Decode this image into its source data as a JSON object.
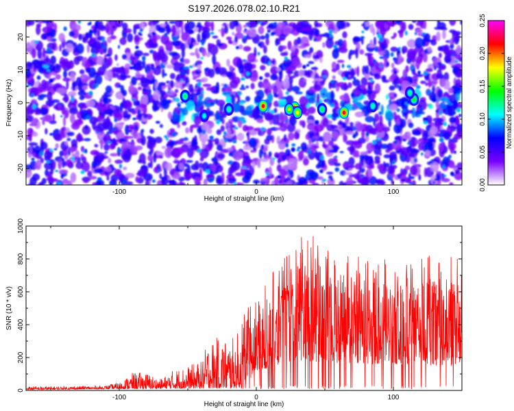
{
  "chart_data": [
    {
      "type": "heatmap",
      "title": "S197.2026.078.02.10.R21",
      "xlabel": "Height of straight line (km)",
      "ylabel": "Frequency (Hz)",
      "xlim": [
        -168,
        150
      ],
      "ylim": [
        -25,
        25
      ],
      "x_ticks": [
        -100,
        0,
        100
      ],
      "y_ticks": [
        -20,
        -10,
        0,
        10,
        20
      ],
      "x_tick_labels": [
        "-100",
        "0",
        "100"
      ],
      "y_tick_labels": [
        "-20",
        "-10",
        "0",
        "10",
        "20"
      ],
      "colorbar": {
        "label": "Normalized spectral amplitude",
        "range": [
          0,
          0.25
        ],
        "ticks": [
          "0.00",
          "0.05",
          "0.10",
          "0.15",
          "0.20",
          "0.25"
        ],
        "colormap": [
          "#ffffff",
          "#7a00ff",
          "#0000ff",
          "#00ffff",
          "#00ff00",
          "#ffff00",
          "#ff0000",
          "#ff00ff"
        ]
      },
      "grid": false,
      "notable_peaks": [
        {
          "x": 5,
          "y": -1,
          "value": 0.22
        },
        {
          "x": 28,
          "y": -1.5,
          "value": 0.21
        },
        {
          "x": 24,
          "y": -2,
          "value": 0.17
        },
        {
          "x": 30,
          "y": -3,
          "value": 0.18
        },
        {
          "x": 64,
          "y": -3,
          "value": 0.22
        },
        {
          "x": -52,
          "y": 2,
          "value": 0.13
        },
        {
          "x": -38,
          "y": -4,
          "value": 0.11
        },
        {
          "x": -20,
          "y": -2,
          "value": 0.12
        },
        {
          "x": 48,
          "y": -2,
          "value": 0.13
        },
        {
          "x": 85,
          "y": -1,
          "value": 0.12
        },
        {
          "x": 115,
          "y": 1,
          "value": 0.14
        },
        {
          "x": 112,
          "y": 3,
          "value": 0.12
        }
      ]
    },
    {
      "type": "line",
      "xlabel": "Height of straight line (km)",
      "ylabel": "SNR (10 * v/v)",
      "xlim": [
        -168,
        150
      ],
      "ylim": [
        0,
        1000
      ],
      "x_ticks": [
        -100,
        0,
        100
      ],
      "y_ticks": [
        0,
        200,
        400,
        600,
        800,
        1000
      ],
      "x_tick_labels": [
        "-100",
        "0",
        "100"
      ],
      "y_tick_labels": [
        "0",
        "200",
        "400",
        "600",
        "800",
        "1000"
      ],
      "grid": false,
      "series": [
        {
          "color": "#ff0000",
          "envelope": [
            {
              "x": -168,
              "y": 25
            },
            {
              "x": -140,
              "y": 25
            },
            {
              "x": -110,
              "y": 30
            },
            {
              "x": -100,
              "y": 50
            },
            {
              "x": -90,
              "y": 110
            },
            {
              "x": -80,
              "y": 110
            },
            {
              "x": -70,
              "y": 70
            },
            {
              "x": -60,
              "y": 130
            },
            {
              "x": -50,
              "y": 150
            },
            {
              "x": -40,
              "y": 180
            },
            {
              "x": -35,
              "y": 310
            },
            {
              "x": -25,
              "y": 330
            },
            {
              "x": -15,
              "y": 320
            },
            {
              "x": -10,
              "y": 470
            },
            {
              "x": 0,
              "y": 560
            },
            {
              "x": 10,
              "y": 700
            },
            {
              "x": 20,
              "y": 800
            },
            {
              "x": 30,
              "y": 920
            },
            {
              "x": 43,
              "y": 1000
            },
            {
              "x": 55,
              "y": 880
            },
            {
              "x": 65,
              "y": 880
            },
            {
              "x": 75,
              "y": 820
            },
            {
              "x": 90,
              "y": 830
            },
            {
              "x": 100,
              "y": 760
            },
            {
              "x": 110,
              "y": 830
            },
            {
              "x": 120,
              "y": 860
            },
            {
              "x": 135,
              "y": 850
            },
            {
              "x": 150,
              "y": 790
            }
          ],
          "floor": [
            {
              "x": -168,
              "y": 5
            },
            {
              "x": -10,
              "y": 15
            },
            {
              "x": 0,
              "y": 120
            },
            {
              "x": 30,
              "y": 180
            },
            {
              "x": 70,
              "y": 160
            },
            {
              "x": 150,
              "y": 150
            }
          ]
        }
      ]
    }
  ]
}
